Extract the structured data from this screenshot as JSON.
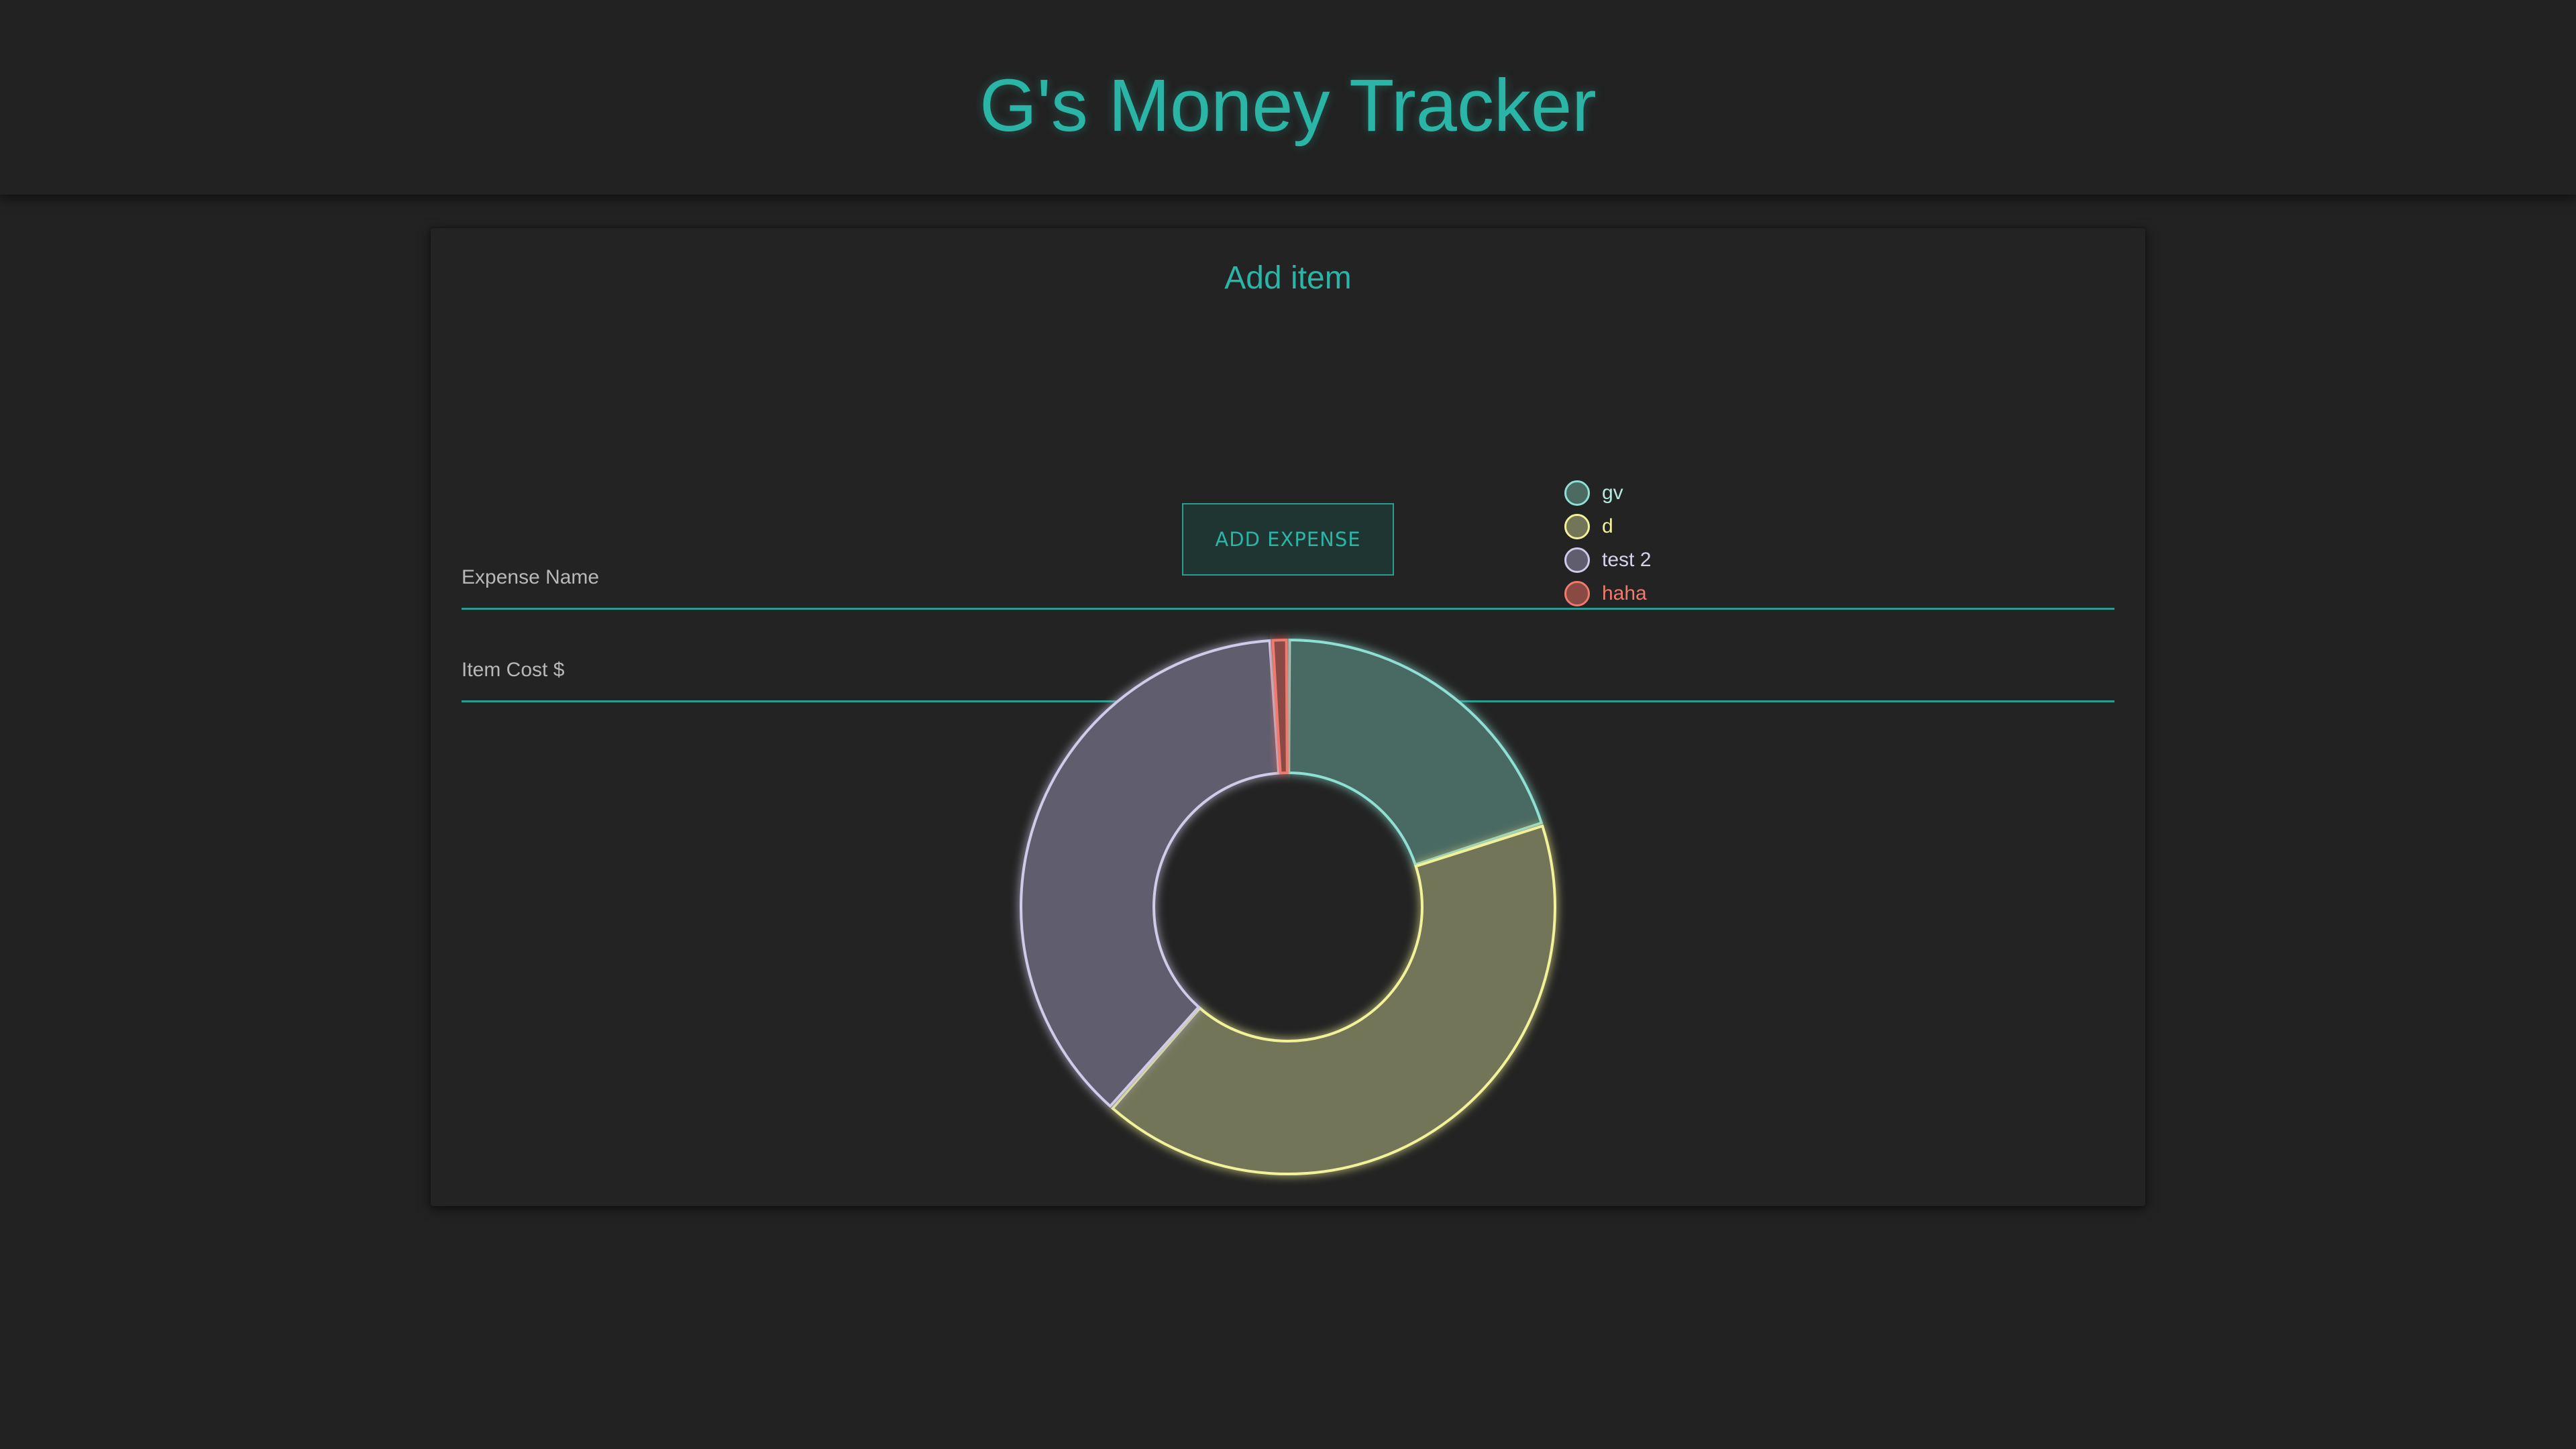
{
  "header": {
    "title": "G's Money Tracker"
  },
  "form": {
    "title": "Add item",
    "expense_name_placeholder": "Expense Name",
    "item_cost_placeholder": "Item Cost $",
    "add_button_label": "ADD EXPENSE"
  },
  "colors": {
    "accent": "#2ab5a6",
    "background": "#222222"
  },
  "chart_data": {
    "type": "pie",
    "variant": "doughnut",
    "categories": [
      "gv",
      "d",
      "test 2",
      "haha"
    ],
    "values": [
      20,
      41.5,
      37.5,
      1
    ],
    "legend_position": "top-right",
    "series_colors": [
      {
        "fill": "#4a6a62",
        "stroke": "#8fe0d4",
        "label": "#b6e8e0"
      },
      {
        "fill": "#727558",
        "stroke": "#f2f29a",
        "label": "#f2f29a"
      },
      {
        "fill": "#5f5d6e",
        "stroke": "#cfcbe8",
        "label": "#d6d2ec"
      },
      {
        "fill": "#8a4a44",
        "stroke": "#f07a6e",
        "label": "#f07a6e"
      }
    ]
  }
}
